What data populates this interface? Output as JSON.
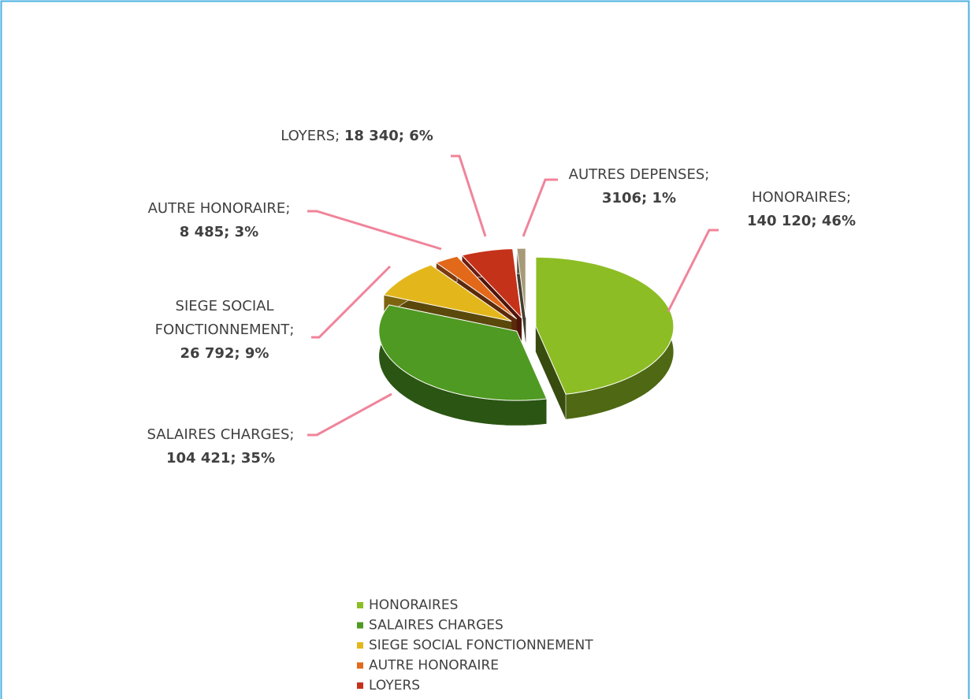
{
  "chart_data": {
    "type": "pie3d",
    "categories": [
      "HONORAIRES",
      "SALAIRES CHARGES",
      "SIEGE SOCIAL FONCTIONNEMENT",
      "AUTRE HONORAIRE",
      "LOYERS",
      "AUTRES DEPENSES"
    ],
    "values": [
      140120,
      104421,
      26792,
      8485,
      18340,
      3106
    ],
    "value_labels": [
      "140 120",
      "104 421",
      "26 792",
      "8 485",
      "18 340",
      "3106"
    ],
    "percents": [
      46,
      35,
      9,
      3,
      6,
      1
    ],
    "percent_labels": [
      "46%",
      "35%",
      "9%",
      "3%",
      "6%",
      "1%"
    ],
    "label_separator": "; ",
    "colors": [
      "#8dbd25",
      "#4f9a22",
      "#e3b71c",
      "#e2691a",
      "#c5321a",
      "#a79a78"
    ],
    "legend": "bottom"
  }
}
